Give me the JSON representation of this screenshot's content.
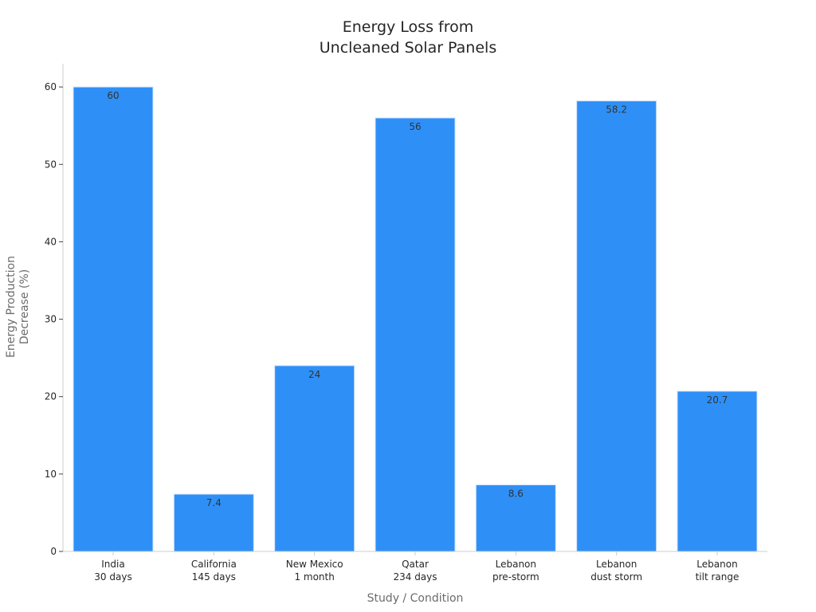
{
  "colors": {
    "bar": "#2E90F7",
    "bar_edge": "#cfe2fb",
    "axis": "#cccccc",
    "text": "#262626",
    "muted_text": "#6b6b6b"
  },
  "chart_data": {
    "type": "bar",
    "title_lines": [
      "Energy Loss from",
      "Uncleaned Solar Panels"
    ],
    "xlabel": "Study / Condition",
    "ylabel_lines": [
      "Energy Production",
      "Decrease (%)"
    ],
    "categories": [
      [
        "India",
        "30 days"
      ],
      [
        "California",
        "145 days"
      ],
      [
        "New Mexico",
        "1 month"
      ],
      [
        "Qatar",
        "234 days"
      ],
      [
        "Lebanon",
        "pre-storm"
      ],
      [
        "Lebanon",
        "dust storm"
      ],
      [
        "Lebanon",
        "tilt range"
      ]
    ],
    "values": [
      60,
      7.4,
      24,
      56,
      8.6,
      58.2,
      20.7
    ],
    "value_labels": [
      "60",
      "7.4",
      "24",
      "56",
      "8.6",
      "58.2",
      "20.7"
    ],
    "ylim": [
      0,
      63
    ],
    "yticks": [
      0,
      10,
      20,
      30,
      40,
      50,
      60
    ],
    "grid": false,
    "legend": "none"
  }
}
